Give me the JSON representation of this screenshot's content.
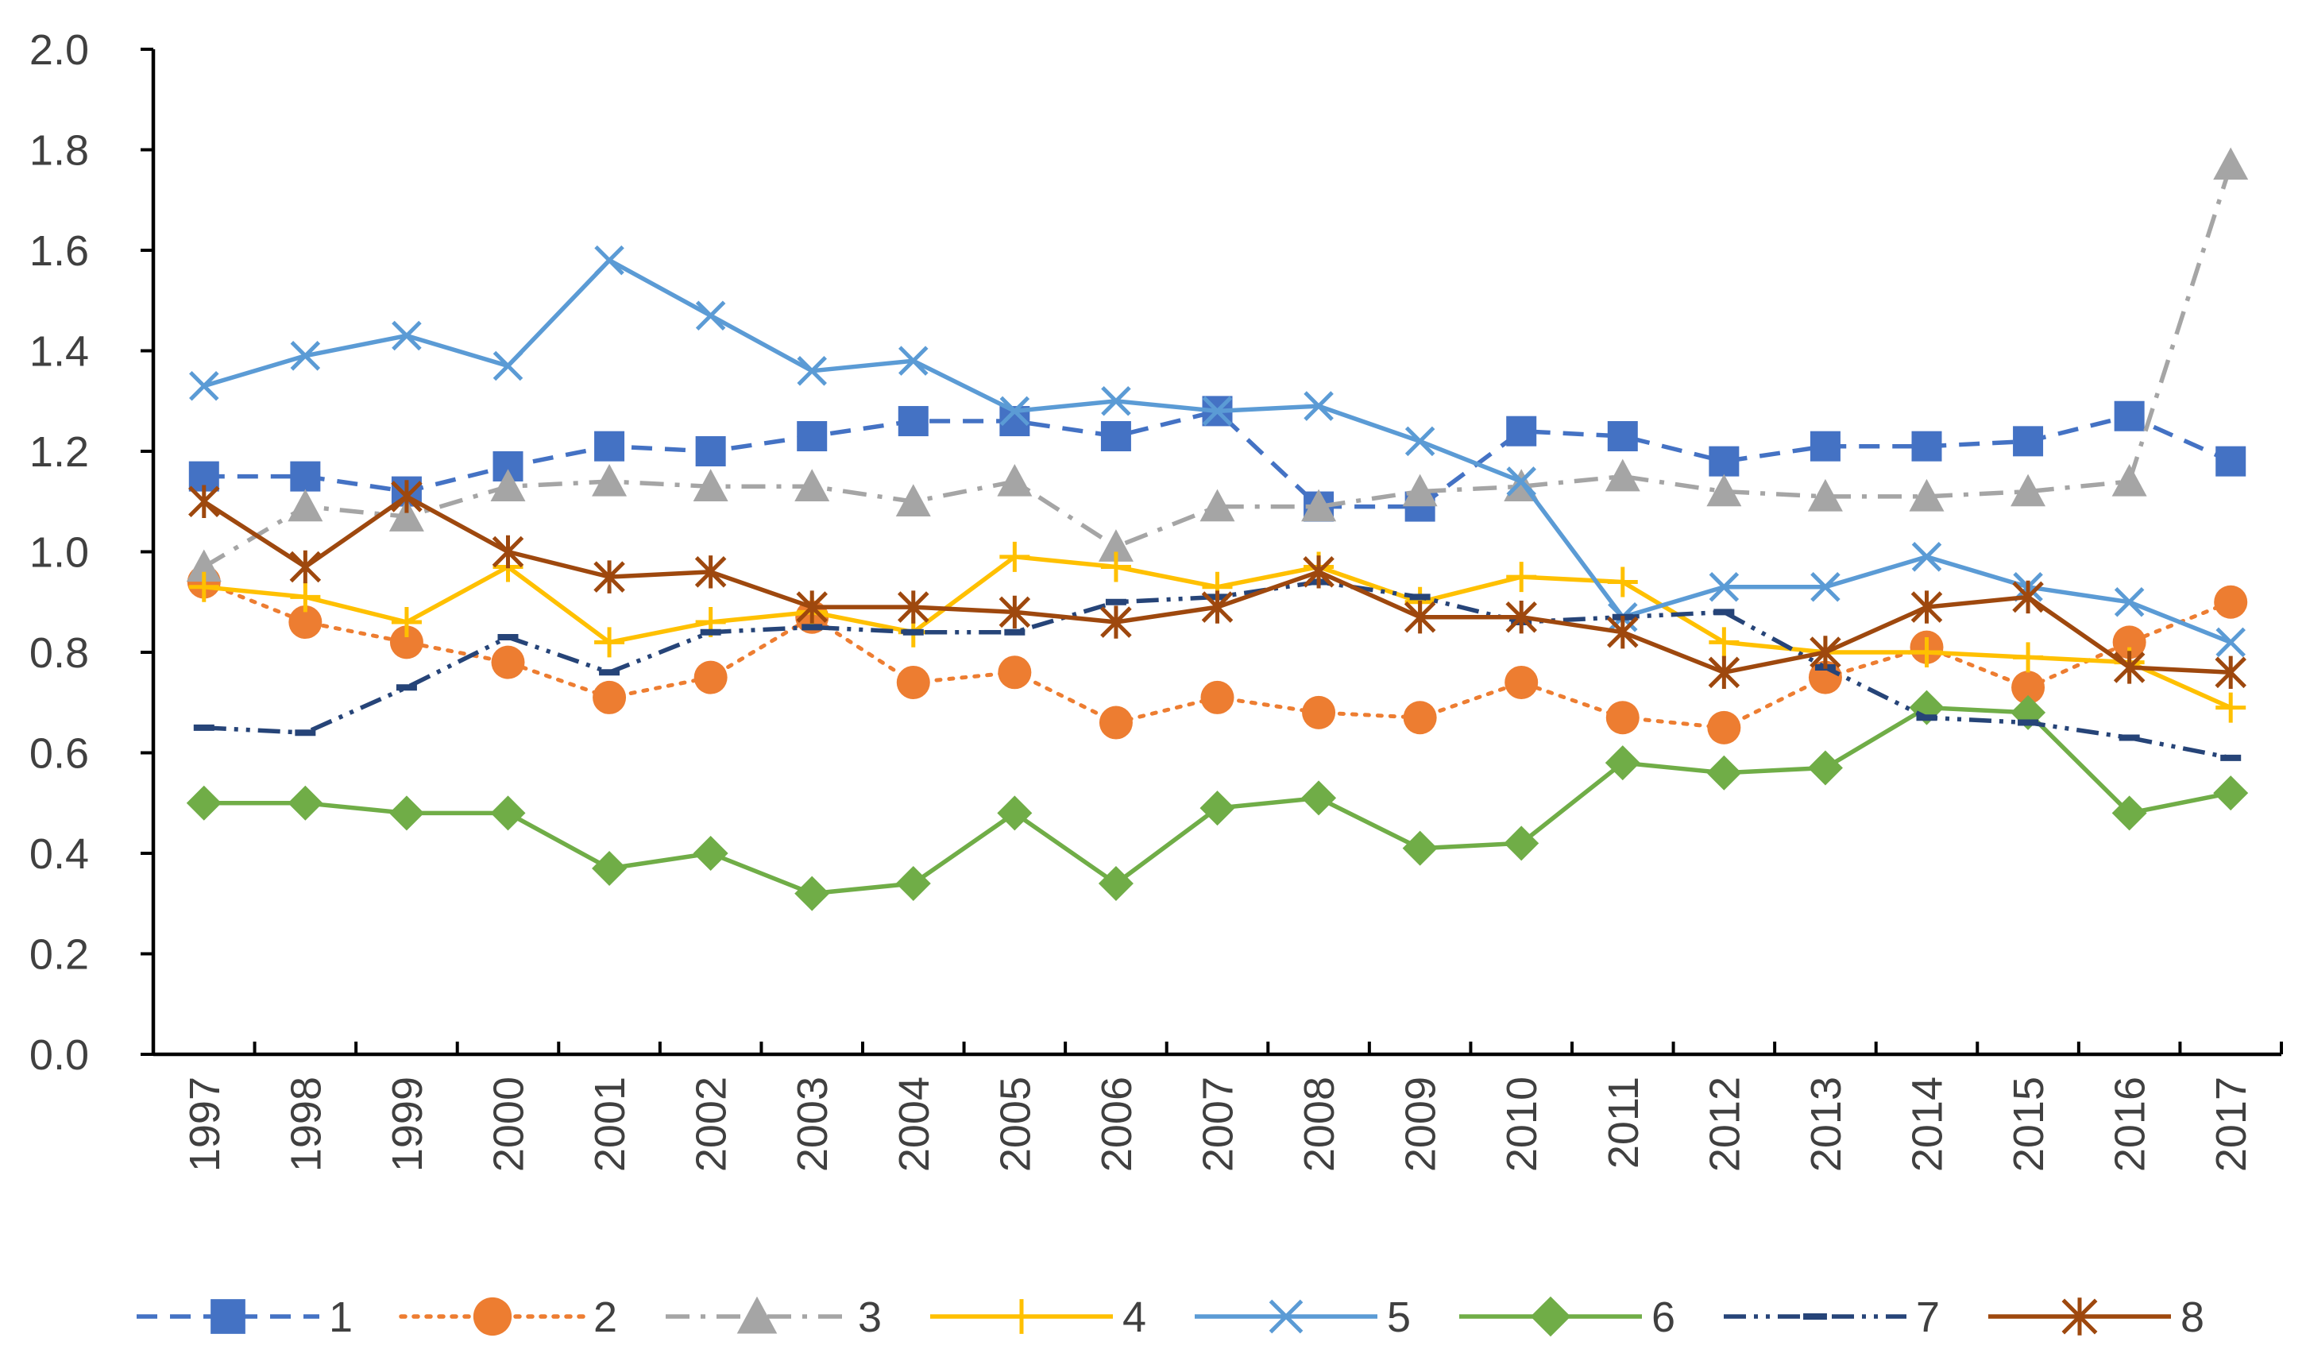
{
  "chart_data": {
    "type": "line",
    "title": "",
    "xlabel": "",
    "ylabel": "",
    "ylim": [
      0,
      2.0
    ],
    "yticks": [
      "0.0",
      "0.2",
      "0.4",
      "0.6",
      "0.8",
      "1.0",
      "1.2",
      "1.4",
      "1.6",
      "1.8",
      "2.0"
    ],
    "categories": [
      "1997",
      "1998",
      "1999",
      "2000",
      "2001",
      "2002",
      "2003",
      "2004",
      "2005",
      "2006",
      "2007",
      "2008",
      "2009",
      "2010",
      "2011",
      "2012",
      "2013",
      "2014",
      "2015",
      "2016",
      "2017"
    ],
    "legend_position": "bottom",
    "grid": false,
    "series": [
      {
        "name": "1",
        "color": "#4472C4",
        "dash": "dash",
        "marker": "square",
        "values": [
          1.15,
          1.15,
          1.12,
          1.17,
          1.21,
          1.2,
          1.23,
          1.26,
          1.26,
          1.23,
          1.28,
          1.09,
          1.09,
          1.24,
          1.23,
          1.18,
          1.21,
          1.21,
          1.22,
          1.27,
          1.18
        ]
      },
      {
        "name": "2",
        "color": "#ED7D31",
        "dash": "dot",
        "marker": "circle",
        "values": [
          0.94,
          0.86,
          0.82,
          0.78,
          0.71,
          0.75,
          0.87,
          0.74,
          0.76,
          0.66,
          0.71,
          0.68,
          0.67,
          0.74,
          0.67,
          0.65,
          0.75,
          0.81,
          0.73,
          0.82,
          0.9
        ]
      },
      {
        "name": "3",
        "color": "#A5A5A5",
        "dash": "dashdot",
        "marker": "triangle",
        "values": [
          0.97,
          1.09,
          1.07,
          1.13,
          1.14,
          1.13,
          1.13,
          1.1,
          1.14,
          1.01,
          1.09,
          1.09,
          1.12,
          1.13,
          1.15,
          1.12,
          1.11,
          1.11,
          1.12,
          1.14,
          1.77
        ]
      },
      {
        "name": "4",
        "color": "#FFC000",
        "dash": "solid",
        "marker": "plus",
        "values": [
          0.93,
          0.91,
          0.86,
          0.97,
          0.82,
          0.86,
          0.88,
          0.84,
          0.99,
          0.97,
          0.93,
          0.97,
          0.9,
          0.95,
          0.94,
          0.82,
          0.8,
          0.8,
          0.79,
          0.78,
          0.69
        ]
      },
      {
        "name": "5",
        "color": "#5B9BD5",
        "dash": "solid",
        "marker": "x",
        "values": [
          1.33,
          1.39,
          1.43,
          1.37,
          1.58,
          1.47,
          1.36,
          1.38,
          1.28,
          1.3,
          1.28,
          1.29,
          1.22,
          1.14,
          0.87,
          0.93,
          0.93,
          0.99,
          0.93,
          0.9,
          0.82
        ]
      },
      {
        "name": "6",
        "color": "#70AD47",
        "dash": "solid",
        "marker": "diamond",
        "values": [
          0.5,
          0.5,
          0.48,
          0.48,
          0.37,
          0.4,
          0.32,
          0.34,
          0.48,
          0.34,
          0.49,
          0.51,
          0.41,
          0.42,
          0.58,
          0.56,
          0.57,
          0.69,
          0.68,
          0.48,
          0.52
        ]
      },
      {
        "name": "7",
        "color": "#264478",
        "dash": "longdashdotdot",
        "marker": "dash",
        "values": [
          0.65,
          0.64,
          0.73,
          0.83,
          0.76,
          0.84,
          0.85,
          0.84,
          0.84,
          0.9,
          0.91,
          0.94,
          0.91,
          0.86,
          0.87,
          0.88,
          0.77,
          0.67,
          0.66,
          0.63,
          0.59
        ]
      },
      {
        "name": "8",
        "color": "#9E480E",
        "dash": "solid",
        "marker": "star",
        "values": [
          1.1,
          0.97,
          1.11,
          1.0,
          0.95,
          0.96,
          0.89,
          0.89,
          0.88,
          0.86,
          0.89,
          0.96,
          0.87,
          0.87,
          0.84,
          0.76,
          0.8,
          0.89,
          0.91,
          0.77,
          0.76
        ]
      }
    ]
  }
}
